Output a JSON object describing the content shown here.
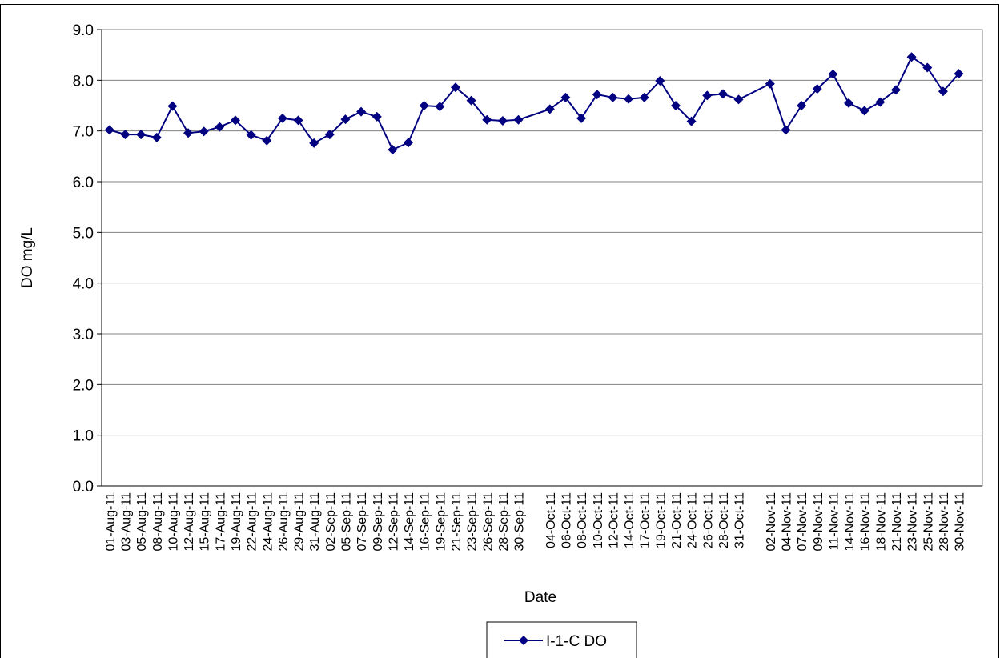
{
  "chart_data": {
    "type": "line",
    "x_label": "Date",
    "y_label": "DO mg/L",
    "categories": [
      "01-Aug-11",
      "03-Aug-11",
      "05-Aug-11",
      "08-Aug-11",
      "10-Aug-11",
      "12-Aug-11",
      "15-Aug-11",
      "17-Aug-11",
      "19-Aug-11",
      "22-Aug-11",
      "24-Aug-11",
      "26-Aug-11",
      "29-Aug-11",
      "31-Aug-11",
      "02-Sep-11",
      "05-Sep-11",
      "07-Sep-11",
      "09-Sep-11",
      "12-Sep-11",
      "14-Sep-11",
      "16-Sep-11",
      "19-Sep-11",
      "21-Sep-11",
      "23-Sep-11",
      "26-Sep-11",
      "28-Sep-11",
      "30-Sep-11",
      null,
      "04-Oct-11",
      "06-Oct-11",
      "08-Oct-11",
      "10-Oct-11",
      "12-Oct-11",
      "14-Oct-11",
      "17-Oct-11",
      "19-Oct-11",
      "21-Oct-11",
      "24-Oct-11",
      "26-Oct-11",
      "28-Oct-11",
      "31-Oct-11",
      null,
      "02-Nov-11",
      "04-Nov-11",
      "07-Nov-11",
      "09-Nov-11",
      "11-Nov-11",
      "14-Nov-11",
      "16-Nov-11",
      "18-Nov-11",
      "21-Nov-11",
      "23-Nov-11",
      "25-Nov-11",
      "28-Nov-11",
      "30-Nov-11",
      null
    ],
    "series": [
      {
        "name": "I-1-C DO",
        "color": "#000080",
        "values": [
          7.02,
          6.93,
          6.93,
          6.87,
          7.49,
          6.96,
          6.99,
          7.08,
          7.21,
          6.92,
          6.81,
          7.25,
          7.21,
          6.76,
          6.93,
          7.23,
          7.38,
          7.28,
          6.63,
          6.77,
          7.5,
          7.48,
          7.86,
          7.6,
          7.22,
          7.2,
          7.22,
          null,
          7.43,
          7.66,
          7.25,
          7.72,
          7.66,
          7.63,
          7.66,
          7.99,
          7.5,
          7.19,
          7.7,
          7.73,
          7.62,
          null,
          7.93,
          7.02,
          7.5,
          7.83,
          8.12,
          7.55,
          7.4,
          7.57,
          7.81,
          8.46,
          8.25,
          7.78,
          8.13,
          null
        ]
      }
    ],
    "connect_gaps": true,
    "ylim": [
      0,
      9
    ],
    "yticks": [
      {
        "value": 0,
        "label": "0.0"
      },
      {
        "value": 1,
        "label": "1.0"
      },
      {
        "value": 2,
        "label": "2.0"
      },
      {
        "value": 3,
        "label": "3.0"
      },
      {
        "value": 4,
        "label": "4.0"
      },
      {
        "value": 5,
        "label": "5.0"
      },
      {
        "value": 6,
        "label": "6.0"
      },
      {
        "value": 7,
        "label": "7.0"
      },
      {
        "value": 8,
        "label": "8.0"
      },
      {
        "value": 9,
        "label": "9.0"
      }
    ],
    "grid": true,
    "legend": "bottom"
  }
}
